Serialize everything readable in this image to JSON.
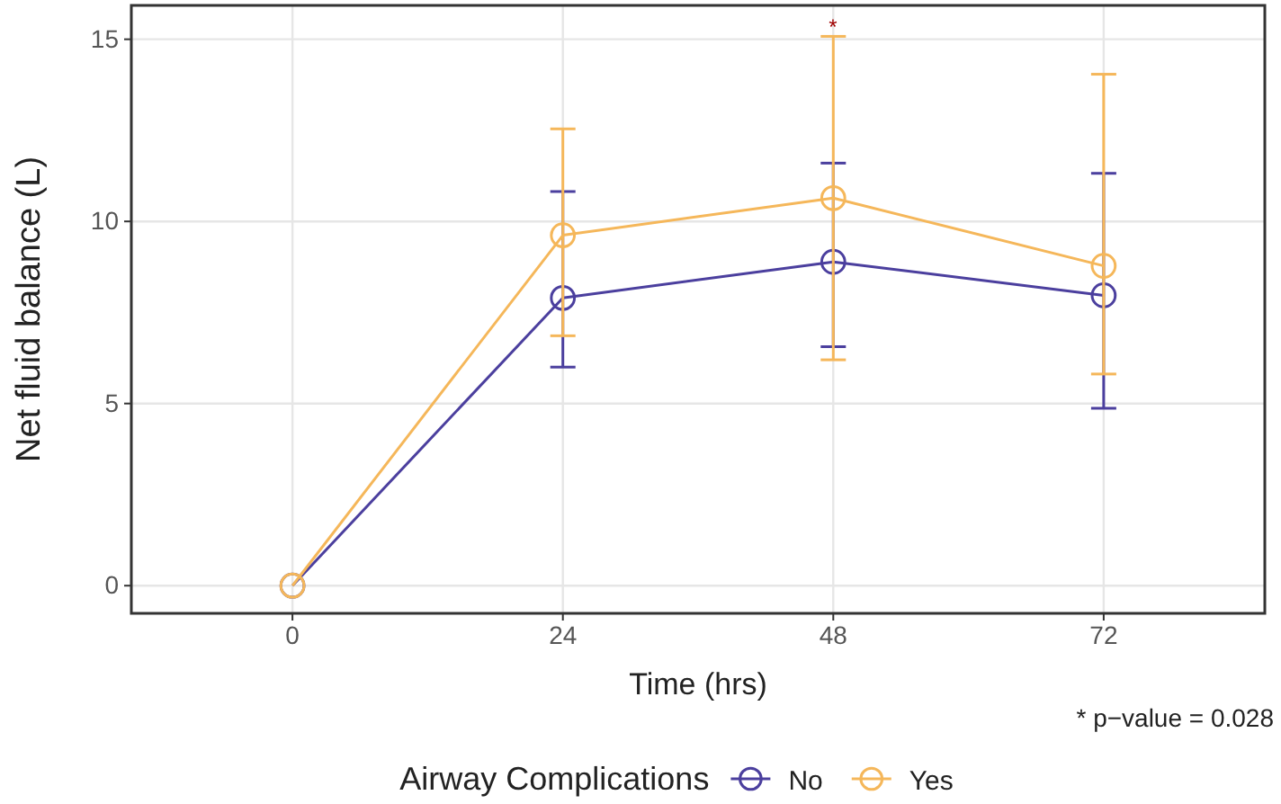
{
  "chart_data": {
    "type": "line",
    "xlabel": "Time (hrs)",
    "ylabel": "Net fluid balance (L)",
    "legend_title": "Airway Complications",
    "x": [
      0,
      24,
      48,
      72
    ],
    "xlim": [
      -14.3,
      86.3
    ],
    "xticks": [
      0,
      24,
      48,
      72
    ],
    "ylim": [
      -0.76,
      15.93
    ],
    "yticks": [
      0,
      5,
      10,
      15
    ],
    "grid": true,
    "legend": "bottom",
    "marker": "circle",
    "line_style": "solid",
    "series": [
      {
        "name": "No",
        "color": "#4b3f9e",
        "values": [
          0,
          7.9,
          8.89,
          7.97
        ],
        "errors": [
          null,
          [
            6.0,
            10.82
          ],
          [
            6.56,
            11.6
          ],
          [
            4.87,
            11.32
          ]
        ]
      },
      {
        "name": "Yes",
        "color": "#f5b75a",
        "values": [
          0,
          9.62,
          10.64,
          8.78
        ],
        "errors": [
          null,
          [
            6.86,
            12.54
          ],
          [
            6.2,
            15.08
          ],
          [
            5.81,
            14.04
          ]
        ]
      }
    ],
    "annotations": [
      "*",
      "* p−value = 0.028"
    ]
  }
}
